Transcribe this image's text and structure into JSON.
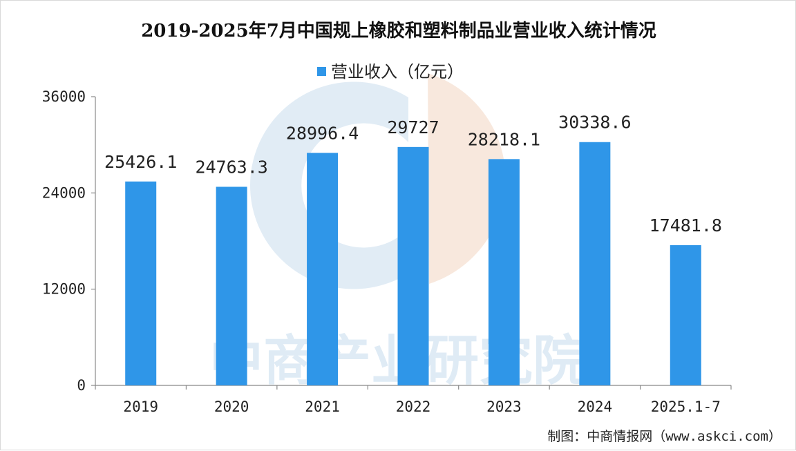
{
  "chart_data": {
    "type": "bar",
    "title": "2019-2025年7月中国规上橡胶和塑料制品业营业收入统计情况",
    "categories": [
      "2019",
      "2020",
      "2021",
      "2022",
      "2023",
      "2024",
      "2025.1-7"
    ],
    "series": [
      {
        "name": "营业收入（亿元）",
        "values": [
          25426.1,
          24763.3,
          28996.4,
          29727,
          28218.1,
          30338.6,
          17481.8
        ],
        "labels": [
          "25426.1",
          "24763.3",
          "28996.4",
          "29727",
          "28218.1",
          "30338.6",
          "17481.8"
        ]
      }
    ],
    "ylim": [
      0,
      36000
    ],
    "yticks": [
      "0",
      "12000",
      "24000",
      "36000"
    ],
    "legend_position": "top-center",
    "grid": false
  },
  "colors": {
    "bar": "#2f96e8",
    "axis": "#888888",
    "watermark_blue": "#c8dcec",
    "watermark_orange": "#f5dccb"
  },
  "watermark": "中商产业研究院",
  "source": "制图：中商情报网（www.askci.com）"
}
